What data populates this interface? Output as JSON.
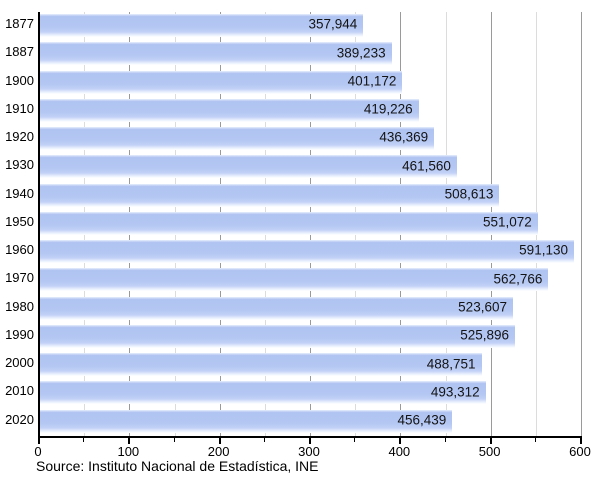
{
  "chart_data": {
    "type": "bar",
    "orientation": "horizontal",
    "title": "",
    "xlabel": "",
    "ylabel": "",
    "categories": [
      "1877",
      "1887",
      "1900",
      "1910",
      "1920",
      "1930",
      "1940",
      "1950",
      "1960",
      "1970",
      "1980",
      "1990",
      "2000",
      "2010",
      "2020"
    ],
    "values": [
      357944,
      389233,
      401172,
      419226,
      436369,
      461560,
      508613,
      551072,
      591130,
      562766,
      523607,
      525896,
      488751,
      493312,
      456439
    ],
    "value_labels": [
      "357,944",
      "389,233",
      "401,172",
      "419,226",
      "436,369",
      "461,560",
      "508,613",
      "551,072",
      "591,130",
      "562,766",
      "523,607",
      "525,896",
      "488,751",
      "493,312",
      "456,439"
    ],
    "xlim": [
      0,
      600000
    ],
    "x_tick_major_interval": 100000,
    "x_tick_minor_interval": 50000,
    "x_tick_labels": [
      "0",
      "100",
      "200",
      "300",
      "400",
      "500",
      "600"
    ],
    "grid": "vertical",
    "legend": "none",
    "source": "Source: Instituto Nacional de Estadística, INE",
    "colors": {
      "bar_fill": "#b4c7f3",
      "grid_major": "#9a9a9a",
      "grid_minor": "#dcdcdc",
      "axis": "#000000",
      "text": "#000000",
      "value_label_text": "#141414"
    }
  }
}
